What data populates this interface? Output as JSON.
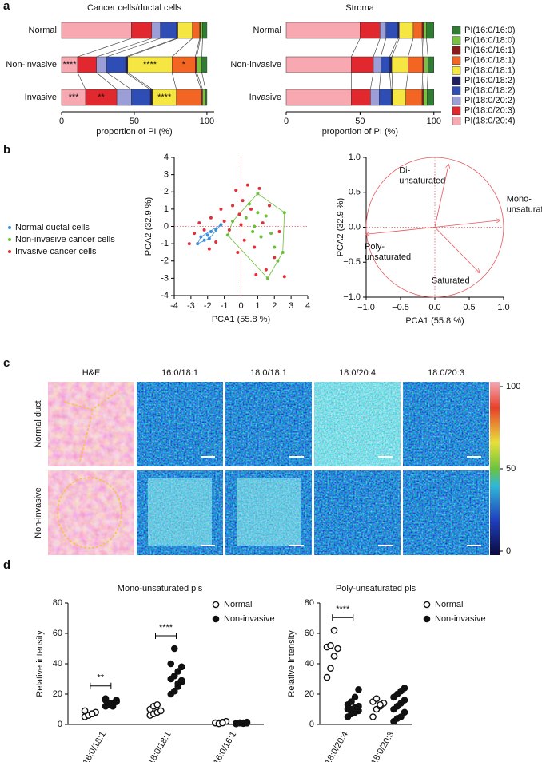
{
  "panel_labels": [
    "a",
    "b",
    "c",
    "d"
  ],
  "chart_data": [
    {
      "type": "stacked-bar-h",
      "title": "Cancer cells/ductal cells",
      "xlabel": "proportion of PI (%)",
      "categories": [
        "Normal",
        "Non-invasive",
        "Invasive"
      ],
      "xlim": [
        0,
        105
      ],
      "xticks": [
        0,
        50,
        100
      ],
      "series": [
        {
          "name": "PI(16:0/16:0)",
          "color": "#2e7d32",
          "values": [
            3,
            3.5,
            1
          ]
        },
        {
          "name": "PI(16:0/18:0)",
          "color": "#7ac142",
          "values": [
            1.5,
            3.5,
            2
          ]
        },
        {
          "name": "PI(16:0/16:1)",
          "color": "#8b1a1a",
          "values": [
            0.5,
            1,
            1
          ]
        },
        {
          "name": "PI(16:0/18:1)",
          "color": "#f26522",
          "values": [
            5,
            16,
            17
          ],
          "annotations": [
            null,
            "*",
            null
          ]
        },
        {
          "name": "PI(18:0/18:1)",
          "color": "#f5e642",
          "values": [
            10,
            30.5,
            16.5
          ],
          "annotations": [
            null,
            "****",
            "****"
          ]
        },
        {
          "name": "PI(16:0/18:2)",
          "color": "#1f1f5e",
          "values": [
            1,
            1.5,
            1.5
          ]
        },
        {
          "name": "PI(18:0/18:2)",
          "color": "#2f4eb5",
          "values": [
            11,
            13,
            13
          ]
        },
        {
          "name": "PI(18:0/20:2)",
          "color": "#9c9ed8",
          "values": [
            6,
            7,
            10
          ]
        },
        {
          "name": "PI(18:0/20:3)",
          "color": "#e0282e",
          "values": [
            14,
            13,
            21.5
          ],
          "annotations": [
            null,
            null,
            "**"
          ]
        },
        {
          "name": "PI(18:0/20:4)",
          "color": "#f7a8b0",
          "values": [
            48,
            11,
            16.5
          ],
          "annotations": [
            null,
            "****",
            "***"
          ]
        }
      ]
    },
    {
      "type": "stacked-bar-h",
      "title": "Stroma",
      "xlabel": "proportion of PI (%)",
      "categories": [
        "Normal",
        "Non-invasive",
        "Invasive"
      ],
      "xlim": [
        0,
        105
      ],
      "xticks": [
        0,
        50,
        100
      ],
      "series": [
        {
          "values": [
            5,
            4,
            4.5
          ]
        },
        {
          "values": [
            2,
            2.5,
            2.5
          ]
        },
        {
          "values": [
            1,
            1,
            1
          ]
        },
        {
          "values": [
            6,
            10,
            11
          ]
        },
        {
          "values": [
            9.5,
            11,
            9
          ]
        },
        {
          "values": [
            1,
            1.5,
            1
          ]
        },
        {
          "values": [
            8,
            6,
            8
          ]
        },
        {
          "values": [
            4,
            5,
            6
          ]
        },
        {
          "values": [
            13.5,
            15,
            13
          ]
        },
        {
          "values": [
            50,
            44,
            44
          ]
        }
      ]
    },
    {
      "type": "scatter",
      "xlabel": "PCA1 (55.8 %)",
      "ylabel": "PCA2 (32.9 %)",
      "xlim": [
        -4,
        4
      ],
      "xticks": [
        -4,
        -3,
        -2,
        -1,
        0,
        1,
        2,
        3,
        4
      ],
      "ylim": [
        -4,
        4
      ],
      "yticks": [
        -4,
        -3,
        -2,
        -1,
        0,
        1,
        2,
        3,
        4
      ],
      "series": [
        {
          "name": "Normal ductal cells",
          "color": "#3d8fd6",
          "outline": true,
          "x": [
            -2.2,
            -2.0,
            -1.8,
            -2.4,
            -1.5,
            -2.6,
            -1.9,
            -1.2
          ],
          "y": [
            -0.8,
            -0.5,
            -0.3,
            -0.6,
            -0.2,
            -1.0,
            -0.7,
            0.1
          ]
        },
        {
          "name": "Non-invasive cancer cells",
          "color": "#6cbf3a",
          "outline": true,
          "x": [
            0.5,
            1.0,
            1.5,
            0.8,
            1.8,
            2.0,
            2.5,
            1.2,
            0.3,
            -0.5,
            2.2,
            1.6,
            0.7,
            2.6,
            1.0,
            -0.8
          ],
          "y": [
            1.3,
            0.8,
            0.6,
            0.0,
            -0.4,
            -1.2,
            -1.5,
            -0.6,
            0.5,
            0.3,
            -2.0,
            -3.0,
            -0.3,
            0.8,
            1.9,
            -0.5
          ]
        },
        {
          "name": "Invasive cancer cells",
          "color": "#e0303a",
          "outline": false,
          "x": [
            -3.1,
            -2.8,
            -2.5,
            -2.2,
            -1.8,
            -1.5,
            -1.2,
            -1.0,
            -0.7,
            -0.5,
            -0.3,
            -0.1,
            0.1,
            0.2,
            0.4,
            0.6,
            0.8,
            1.1,
            1.3,
            1.5,
            1.7,
            2.0,
            2.3,
            2.6,
            -0.2,
            0.9,
            -1.9,
            0.0
          ],
          "y": [
            -1.0,
            -0.4,
            0.2,
            -0.2,
            0.5,
            -0.9,
            1.0,
            0.3,
            -0.2,
            1.2,
            2.1,
            0.7,
            1.5,
            -0.8,
            2.4,
            1.0,
            -1.2,
            2.2,
            0.2,
            -2.5,
            1.2,
            -1.8,
            -0.3,
            -2.9,
            -1.5,
            -2.8,
            -1.3,
            0.1
          ]
        }
      ]
    },
    {
      "type": "biplot",
      "xlabel": "PCA1 (55.8 %)",
      "ylabel": "PCA2 (32.9 %)",
      "xlim": [
        -1,
        1
      ],
      "ylim": [
        -1,
        1
      ],
      "xticks": [
        {
          "value": -1,
          "label": "−1.0"
        },
        {
          "value": -0.5,
          "label": "−0.5"
        },
        {
          "value": 0,
          "label": "0.0"
        },
        {
          "value": 0.5,
          "label": "0.5"
        },
        {
          "value": 1,
          "label": "1.0"
        }
      ],
      "yticks": [
        {
          "value": -1,
          "label": "−1.0"
        },
        {
          "value": -0.5,
          "label": "−0.5"
        },
        {
          "value": 0,
          "label": "0.0"
        },
        {
          "value": 0.5,
          "label": "0.5"
        },
        {
          "value": 1,
          "label": "1.0"
        }
      ],
      "color": "#e8545c",
      "vectors": [
        {
          "name": [
            "Di-",
            "unsaturated"
          ],
          "x": 0.2,
          "y": 0.9
        },
        {
          "name": [
            "Mono-",
            "unsaturated"
          ],
          "x": 0.95,
          "y": 0.1
        },
        {
          "name": [
            "Poly-",
            "unsaturated"
          ],
          "x": -1.0,
          "y": -0.1
        },
        {
          "name": [
            "Saturated"
          ],
          "x": 0.65,
          "y": -0.65
        }
      ]
    },
    {
      "type": "dot",
      "title": "Mono-unsaturated pls",
      "ylabel": "Relative intensity",
      "categories": [
        "16:0/18:1",
        "18:0/18:1",
        "16:0/16:1"
      ],
      "ylim": [
        0,
        80
      ],
      "yticks": [
        0,
        20,
        40,
        60,
        80
      ],
      "significance": [
        "**",
        "****",
        null
      ],
      "series": [
        {
          "name": "Normal",
          "marker": "open",
          "values": [
            [
              5,
              6,
              7,
              8,
              9,
              6,
              7
            ],
            [
              6,
              7,
              8,
              9,
              10,
              12,
              13
            ],
            [
              1,
              1,
              1.5,
              2,
              1,
              0.5,
              1
            ]
          ]
        },
        {
          "name": "Non-invasive",
          "marker": "filled",
          "values": [
            [
              12,
              13,
              14,
              15,
              16,
              14,
              13,
              15,
              17,
              14,
              12,
              16
            ],
            [
              20,
              22,
              25,
              28,
              30,
              32,
              35,
              38,
              40,
              50,
              27,
              29
            ],
            [
              0.5,
              1,
              1,
              1.5,
              0.5,
              1,
              0.8,
              1.2,
              0.7,
              1,
              0.6,
              0.9
            ]
          ]
        }
      ]
    },
    {
      "type": "dot",
      "title": "Poly-unsaturated pls",
      "ylabel": "Relative intensity",
      "categories": [
        "18:0/20:4",
        "18:0/20:3"
      ],
      "ylim": [
        0,
        80
      ],
      "yticks": [
        0,
        20,
        40,
        60,
        80
      ],
      "significance": [
        "****",
        null
      ],
      "series": [
        {
          "name": "Normal",
          "marker": "open",
          "values": [
            [
              31,
              37,
              45,
              50,
              51,
              52,
              62
            ],
            [
              5,
              10,
              12,
              14,
              15,
              17,
              13
            ]
          ]
        },
        {
          "name": "Non-invasive",
          "marker": "filled",
          "values": [
            [
              5,
              7,
              8,
              9,
              10,
              10,
              11,
              12,
              13,
              15,
              18,
              23
            ],
            [
              2,
              4,
              5,
              8,
              10,
              12,
              14,
              16,
              18,
              20,
              22,
              24
            ]
          ]
        }
      ]
    }
  ],
  "image_panel": {
    "columns": [
      "H&E",
      "16:0/18:1",
      "18:0/18:1",
      "18:0/20:4",
      "18:0/20:3"
    ],
    "rows": [
      "Normal duct",
      "Non-invasive"
    ],
    "colorbar": {
      "lim": [
        0,
        100
      ],
      "ticks": [
        0,
        50,
        100
      ]
    }
  }
}
